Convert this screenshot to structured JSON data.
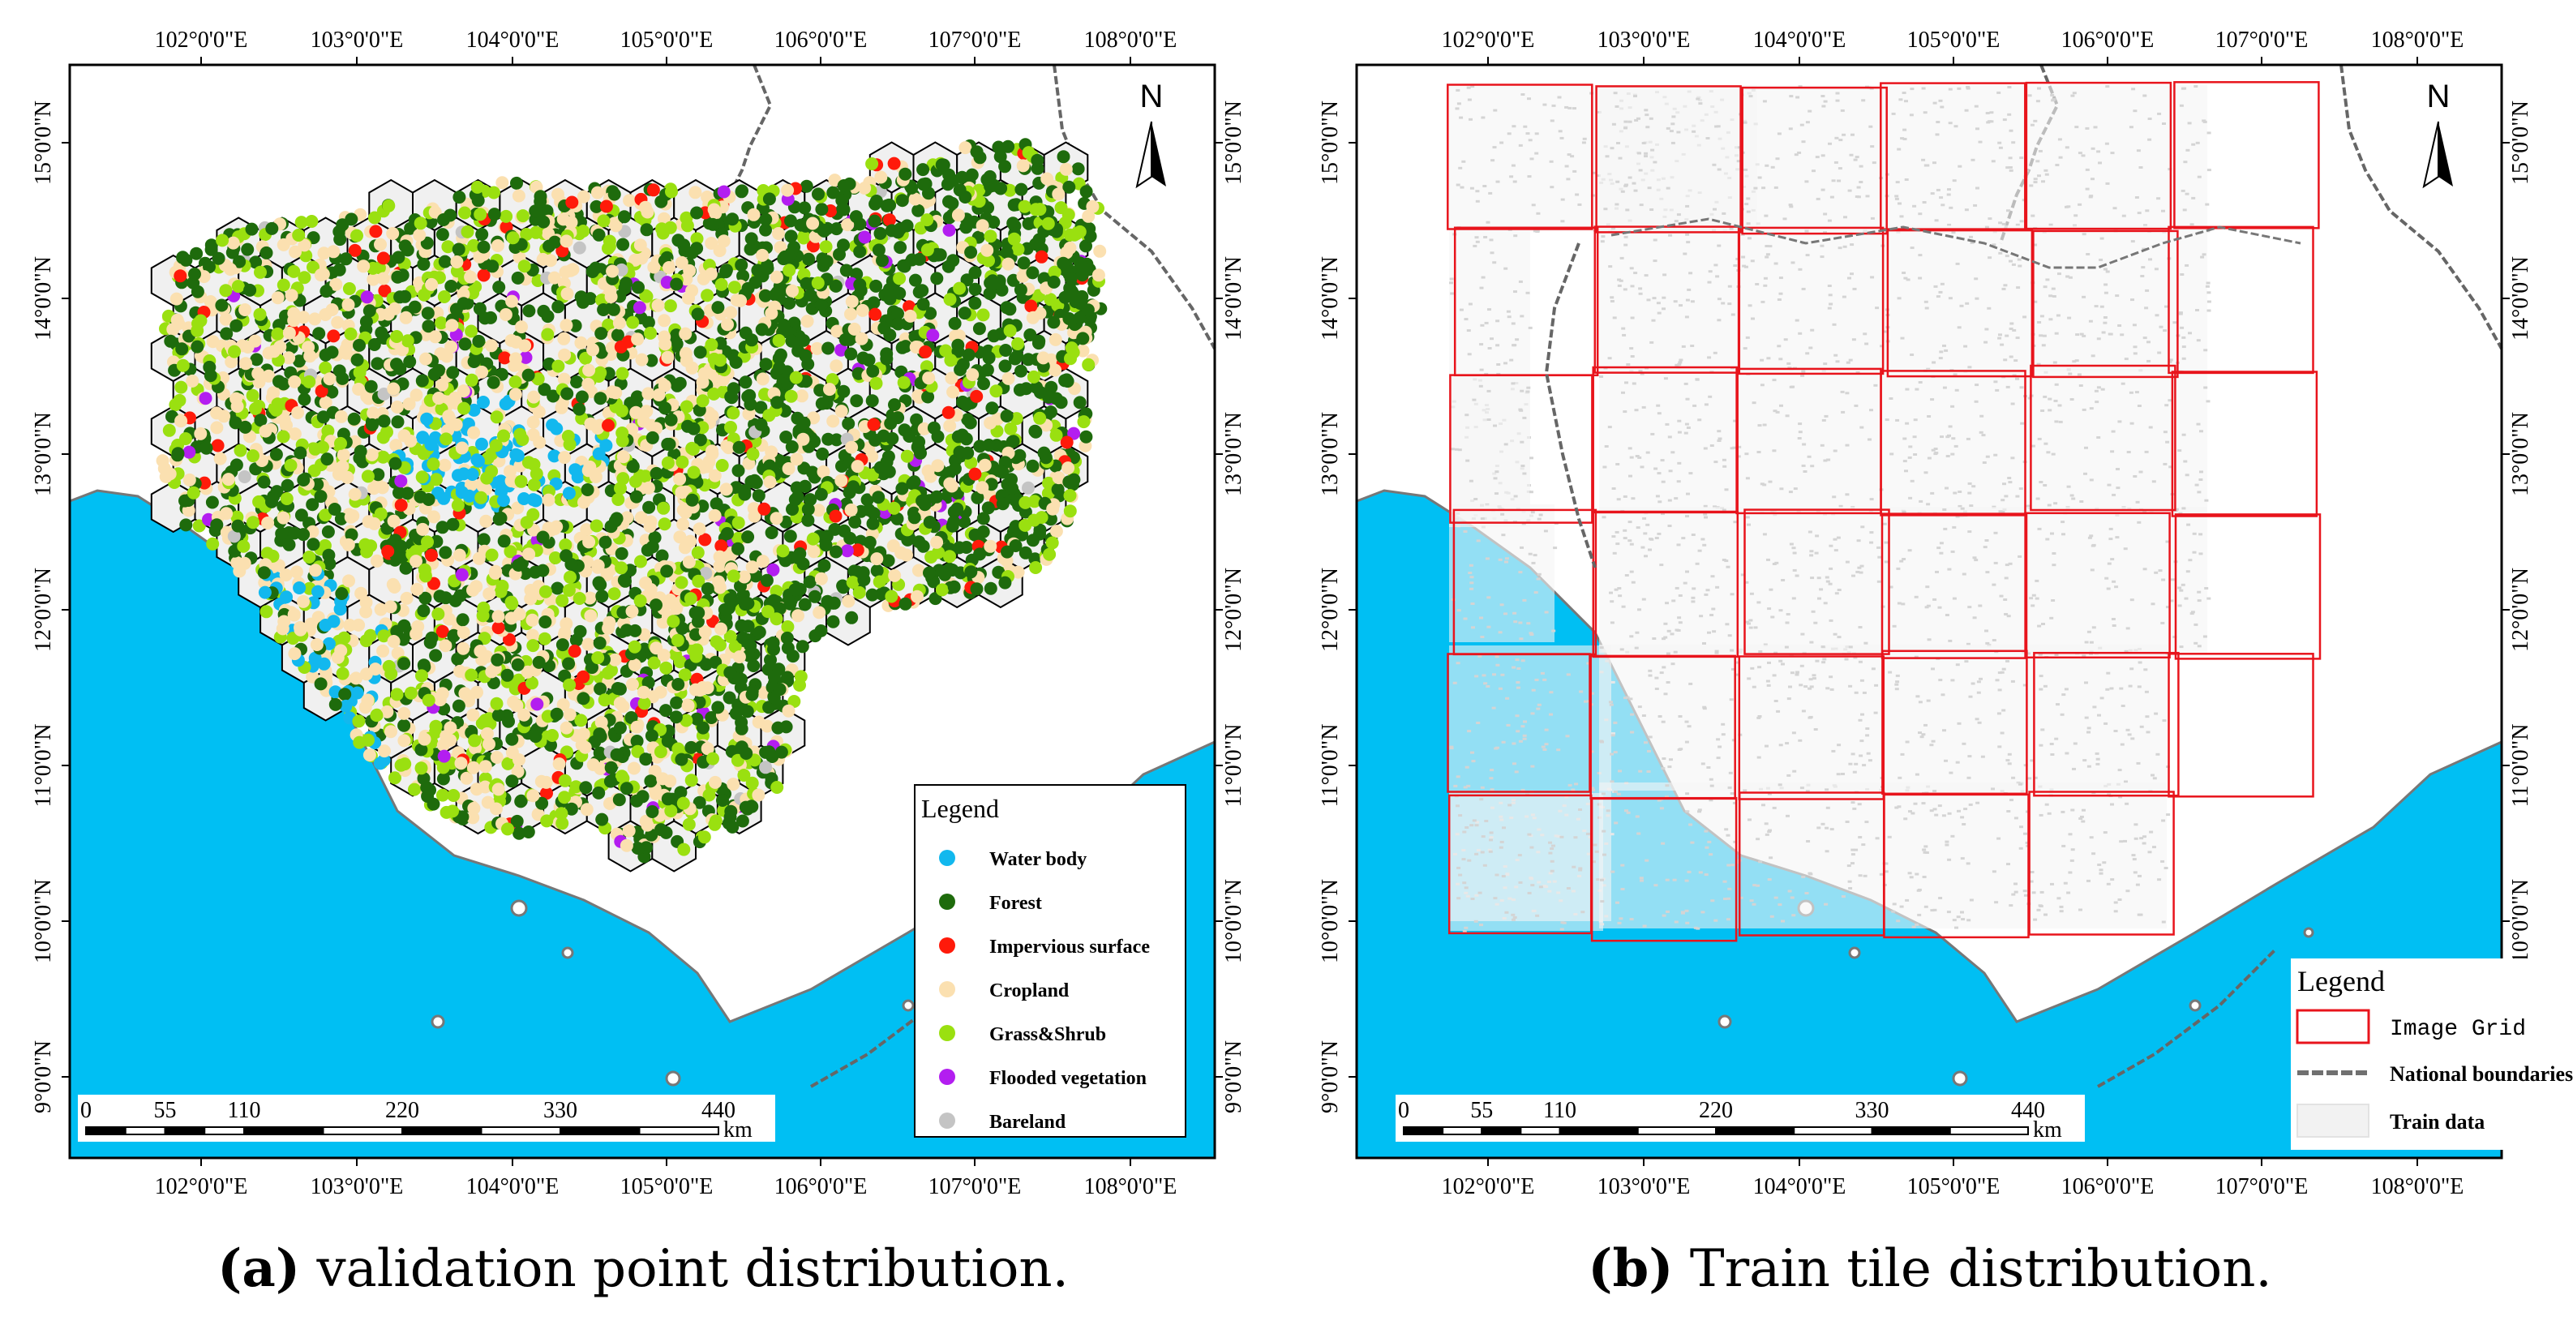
{
  "panels": [
    {
      "id": "a",
      "letter": "(a)",
      "caption": "validation point distribution.",
      "lon_labels": [
        "102°0'0\"E",
        "103°0'0\"E",
        "104°0'0\"E",
        "105°0'0\"E",
        "106°0'0\"E",
        "107°0'0\"E",
        "108°0'0\"E"
      ],
      "lat_labels": [
        "15°0'0\"N",
        "14°0'0\"N",
        "13°0'0\"N",
        "12°0'0\"N",
        "11°0'0\"N",
        "10°0'0\"N",
        "9°0'0\"N"
      ],
      "north": "N",
      "legend_title": "Legend",
      "legend": [
        {
          "label": "Water body",
          "color": "#12b8ee"
        },
        {
          "label": "Forest",
          "color": "#1e6b0c"
        },
        {
          "label": "Impervious surface",
          "color": "#ff1a0a"
        },
        {
          "label": "Cropland",
          "color": "#fbe0b0"
        },
        {
          "label": "Grass&Shrub",
          "color": "#9ae010"
        },
        {
          "label": "Flooded vegetation",
          "color": "#b31ef0"
        },
        {
          "label": "Bareland",
          "color": "#c4c4c4"
        }
      ],
      "scalebar": {
        "ticks": [
          "0",
          "55",
          "110",
          "220",
          "330",
          "440"
        ],
        "unit": "km"
      }
    },
    {
      "id": "b",
      "letter": "(b)",
      "caption": "Train tile distribution.",
      "lon_labels": [
        "102°0'0\"E",
        "103°0'0\"E",
        "104°0'0\"E",
        "105°0'0\"E",
        "106°0'0\"E",
        "107°0'0\"E",
        "108°0'0\"E"
      ],
      "lat_labels": [
        "15°0'0\"N",
        "14°0'0\"N",
        "13°0'0\"N",
        "12°0'0\"N",
        "11°0'0\"N",
        "10°0'0\"N",
        "9°0'0\"N"
      ],
      "north": "N",
      "legend_title": "Legend",
      "legend": [
        {
          "label": "Image Grid",
          "color": "#e8141c"
        },
        {
          "label": "National boundaries",
          "color": "#707070"
        },
        {
          "label": "Train data",
          "color": "#dcdcdc"
        }
      ],
      "scalebar": {
        "ticks": [
          "0",
          "55",
          "110",
          "220",
          "330",
          "440"
        ],
        "unit": "km"
      }
    }
  ],
  "colors": {
    "sea": "#00bff3",
    "land": "#ffffff",
    "hex_fill": "#f0f0f0",
    "grid": "#e8141c",
    "tile": "#d4d4d4"
  }
}
